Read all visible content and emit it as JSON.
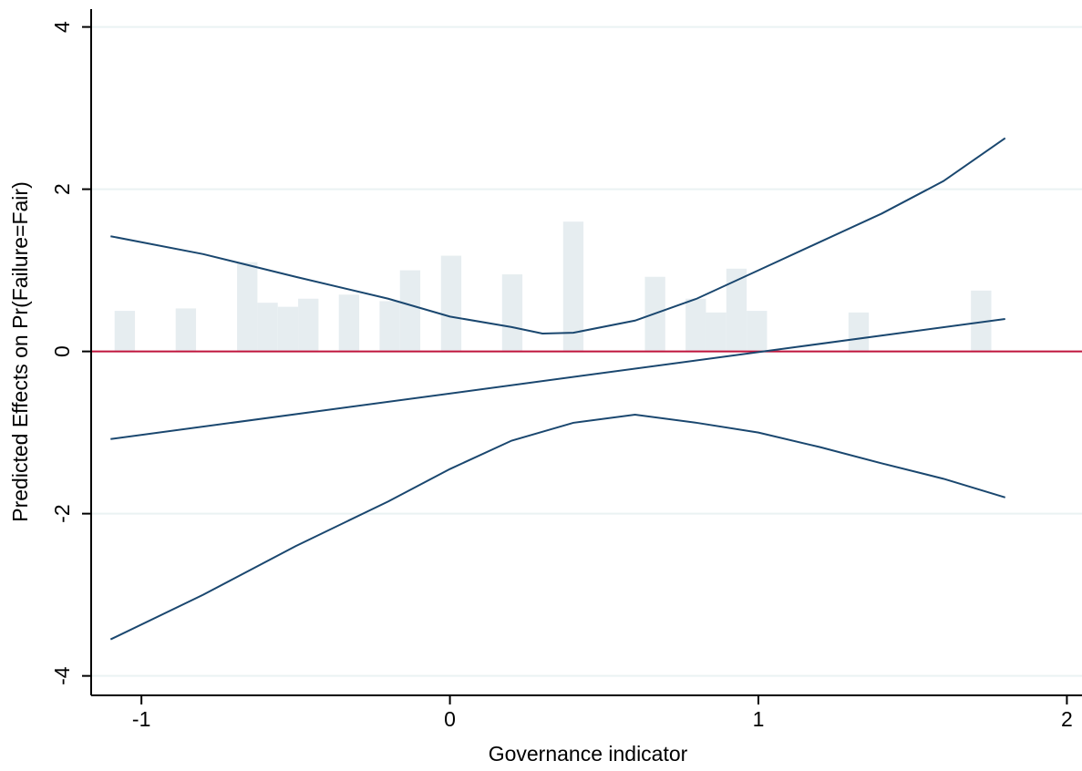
{
  "chart_data": {
    "type": "line",
    "x_label": "Governance indicator",
    "y_label": "Predicted Effects on Pr(Failure=Fair)",
    "xlim": [
      -1.163,
      2.049
    ],
    "ylim": [
      -4.24,
      4.22
    ],
    "xticks": [
      -1,
      0,
      1,
      2
    ],
    "yticks": [
      -4,
      -2,
      0,
      2,
      4
    ],
    "grid": true,
    "grid_color": "#eaf2f3",
    "reference_line": {
      "value": 0,
      "color": "#c0143c"
    },
    "histogram": {
      "color": "#e6edf0",
      "bins": [
        -1.087,
        -1.021,
        -0.955,
        -0.889,
        -0.823,
        -0.757,
        -0.69,
        -0.624,
        -0.558,
        -0.492,
        -0.426,
        -0.36,
        -0.294,
        -0.228,
        -0.162,
        -0.096,
        -0.029,
        0.037,
        0.103,
        0.169,
        0.235,
        0.301,
        0.367,
        0.433,
        0.499,
        0.565,
        0.632,
        0.698,
        0.764,
        0.83,
        0.896,
        0.962,
        1.028,
        1.094,
        1.16,
        1.226,
        1.292,
        1.358,
        1.424,
        1.491,
        1.557,
        1.623,
        1.689,
        1.755
      ],
      "counts": [
        0.5,
        0,
        0,
        0.53,
        0,
        0,
        1.1,
        0.6,
        0.55,
        0.65,
        0,
        0.7,
        0,
        0.62,
        1.0,
        0,
        1.18,
        0,
        0,
        0.95,
        0,
        0,
        1.6,
        0,
        0,
        0,
        0.92,
        0,
        0.65,
        0.48,
        1.02,
        0.5,
        0,
        0,
        0,
        0,
        0.48,
        0,
        0,
        0,
        0,
        0,
        0.75
      ]
    },
    "series": [
      {
        "color": "#1a476f",
        "x": [
          -1.1,
          1.8
        ],
        "values": [
          -1.08,
          0.4
        ]
      },
      {
        "color": "#1a476f",
        "x": [
          -1.1,
          -0.8,
          -0.5,
          -0.2,
          0,
          0.2,
          0.3,
          0.4,
          0.6,
          0.8,
          1.0,
          1.2,
          1.4,
          1.6,
          1.8
        ],
        "values": [
          1.42,
          1.2,
          0.92,
          0.65,
          0.43,
          0.3,
          0.22,
          0.23,
          0.38,
          0.65,
          1.0,
          1.35,
          1.7,
          2.1,
          2.63
        ]
      },
      {
        "color": "#1a476f",
        "x": [
          -1.1,
          -0.8,
          -0.5,
          -0.2,
          0,
          0.2,
          0.4,
          0.6,
          0.8,
          1.0,
          1.2,
          1.4,
          1.6,
          1.8
        ],
        "values": [
          -3.55,
          -3.0,
          -2.4,
          -1.85,
          -1.45,
          -1.1,
          -0.88,
          -0.78,
          -0.88,
          -1.0,
          -1.18,
          -1.38,
          -1.57,
          -1.8
        ]
      }
    ]
  }
}
